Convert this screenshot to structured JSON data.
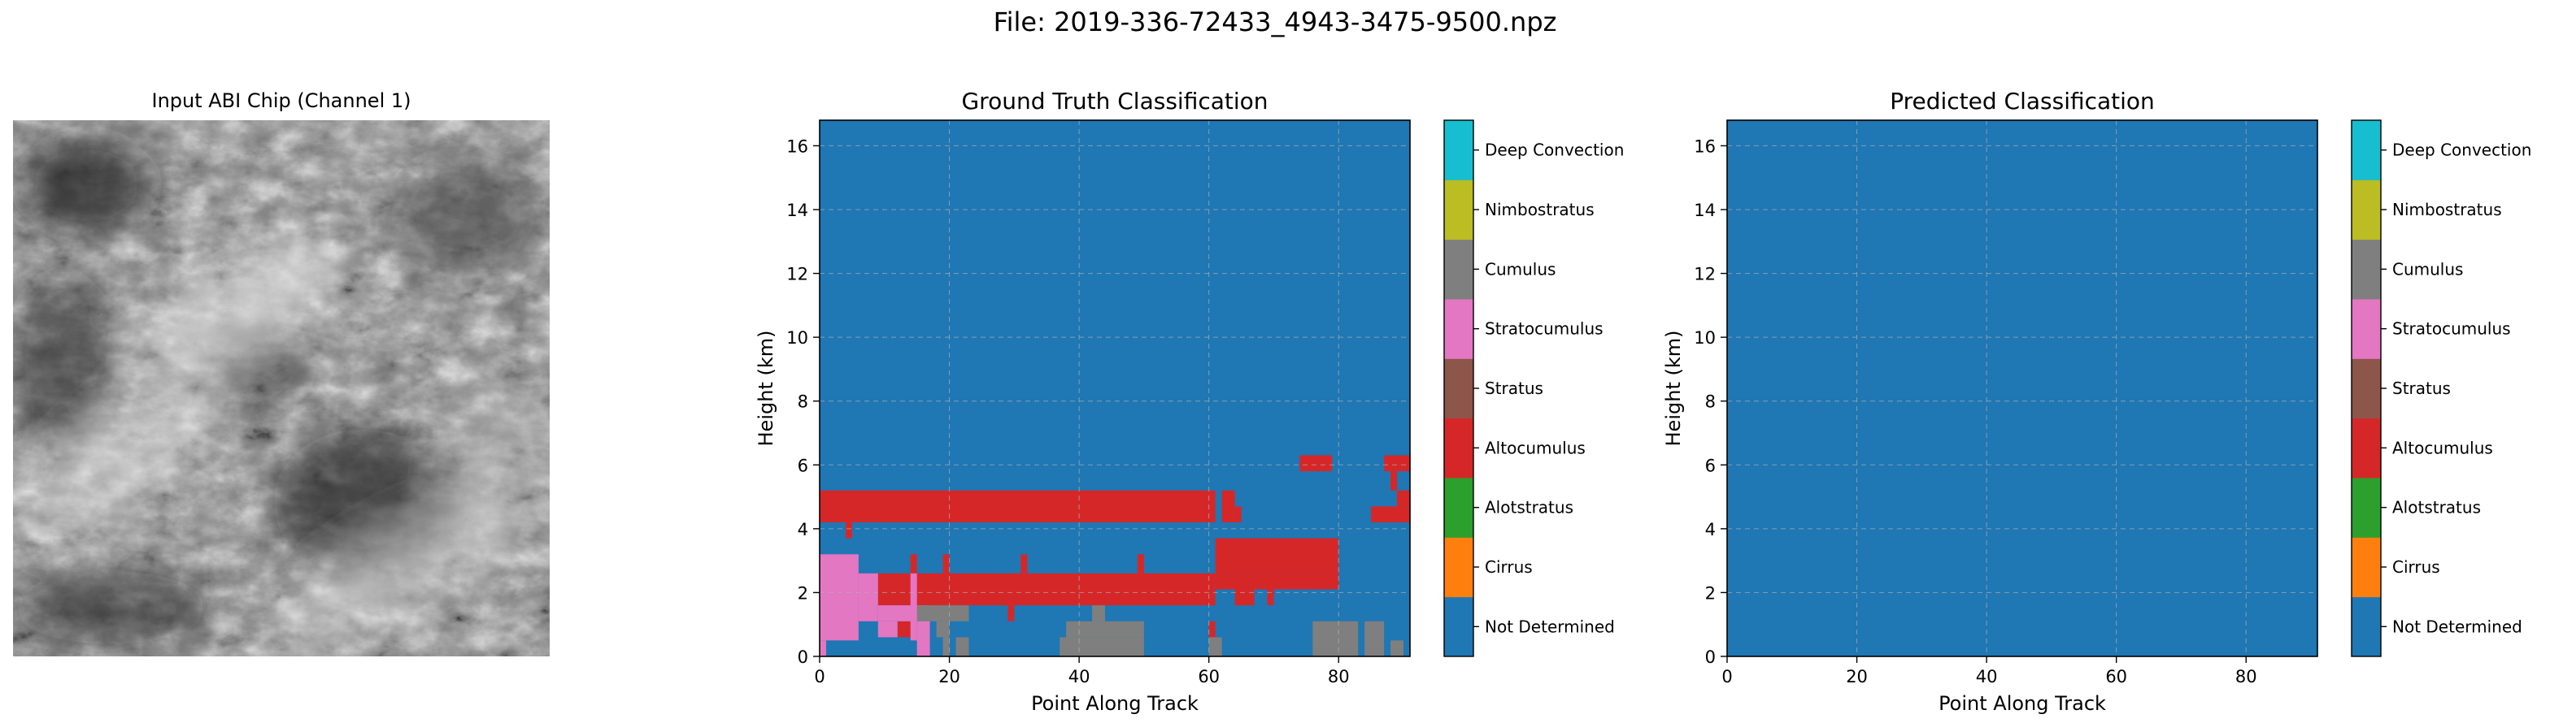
{
  "suptitle": "File: 2019-336-72433_4943-3475-9500.npz",
  "panels": {
    "input": {
      "title": "Input ABI Chip (Channel 1)"
    },
    "ground_truth": {
      "title": "Ground Truth Classification"
    },
    "predicted": {
      "title": "Predicted Classification"
    }
  },
  "colorbar": {
    "classes": [
      {
        "name": "Not Determined",
        "color": "#1f77b4"
      },
      {
        "name": "Cirrus",
        "color": "#ff7f0e"
      },
      {
        "name": "Alotstratus",
        "color": "#2ca02c"
      },
      {
        "name": "Altocumulus",
        "color": "#d62728"
      },
      {
        "name": "Stratus",
        "color": "#8c564b"
      },
      {
        "name": "Stratocumulus",
        "color": "#e377c2"
      },
      {
        "name": "Cumulus",
        "color": "#7f7f7f"
      },
      {
        "name": "Nimbostratus",
        "color": "#bcbd22"
      },
      {
        "name": "Deep Convection",
        "color": "#17becf"
      }
    ]
  },
  "chart_data": [
    {
      "type": "heatmap",
      "title": "Ground Truth Classification",
      "xlabel": "Point Along Track",
      "ylabel": "Height (km)",
      "xlim": [
        0,
        91
      ],
      "ylim": [
        0,
        16.8
      ],
      "xticks": [
        0,
        20,
        40,
        60,
        80
      ],
      "yticks": [
        0,
        2,
        4,
        6,
        8,
        10,
        12,
        14,
        16
      ],
      "grid": true,
      "background_class": "Not Determined",
      "regions": [
        {
          "class": "Altocumulus",
          "x": [
            0,
            61
          ],
          "y": [
            4.2,
            5.2
          ]
        },
        {
          "class": "Altocumulus",
          "x": [
            4,
            5
          ],
          "y": [
            3.7,
            4.2
          ]
        },
        {
          "class": "Altocumulus",
          "x": [
            62,
            64
          ],
          "y": [
            4.2,
            5.2
          ]
        },
        {
          "class": "Altocumulus",
          "x": [
            64,
            65
          ],
          "y": [
            4.2,
            4.7
          ]
        },
        {
          "class": "Altocumulus",
          "x": [
            74,
            79
          ],
          "y": [
            5.8,
            6.3
          ]
        },
        {
          "class": "Altocumulus",
          "x": [
            87,
            91
          ],
          "y": [
            5.8,
            6.3
          ]
        },
        {
          "class": "Altocumulus",
          "x": [
            88,
            89
          ],
          "y": [
            5.2,
            5.8
          ]
        },
        {
          "class": "Altocumulus",
          "x": [
            85,
            91
          ],
          "y": [
            4.2,
            4.7
          ]
        },
        {
          "class": "Altocumulus",
          "x": [
            89,
            91
          ],
          "y": [
            4.7,
            5.2
          ]
        },
        {
          "class": "Altocumulus",
          "x": [
            61,
            80
          ],
          "y": [
            2.6,
            3.7
          ]
        },
        {
          "class": "Altocumulus",
          "x": [
            61,
            80
          ],
          "y": [
            2.1,
            2.6
          ]
        },
        {
          "class": "Altocumulus",
          "x": [
            8,
            61
          ],
          "y": [
            1.6,
            2.6
          ]
        },
        {
          "class": "Altocumulus",
          "x": [
            14,
            15
          ],
          "y": [
            2.6,
            3.2
          ]
        },
        {
          "class": "Altocumulus",
          "x": [
            19,
            20
          ],
          "y": [
            2.6,
            3.2
          ]
        },
        {
          "class": "Altocumulus",
          "x": [
            31,
            32
          ],
          "y": [
            2.6,
            3.2
          ]
        },
        {
          "class": "Altocumulus",
          "x": [
            49,
            50
          ],
          "y": [
            2.6,
            3.2
          ]
        },
        {
          "class": "Altocumulus",
          "x": [
            29,
            30
          ],
          "y": [
            1.1,
            1.6
          ]
        },
        {
          "class": "Altocumulus",
          "x": [
            12,
            15
          ],
          "y": [
            0.6,
            1.1
          ]
        },
        {
          "class": "Altocumulus",
          "x": [
            64,
            67
          ],
          "y": [
            1.6,
            2.1
          ]
        },
        {
          "class": "Altocumulus",
          "x": [
            69,
            70
          ],
          "y": [
            1.6,
            2.1
          ]
        },
        {
          "class": "Altocumulus",
          "x": [
            60,
            61
          ],
          "y": [
            0.6,
            1.1
          ]
        },
        {
          "class": "Stratocumulus",
          "x": [
            0,
            6
          ],
          "y": [
            0.5,
            3.2
          ]
        },
        {
          "class": "Stratocumulus",
          "x": [
            6,
            9
          ],
          "y": [
            1.1,
            2.6
          ]
        },
        {
          "class": "Stratocumulus",
          "x": [
            9,
            17
          ],
          "y": [
            1.1,
            1.6
          ]
        },
        {
          "class": "Stratocumulus",
          "x": [
            9,
            12
          ],
          "y": [
            0.6,
            1.1
          ]
        },
        {
          "class": "Stratocumulus",
          "x": [
            14,
            15
          ],
          "y": [
            0.5,
            2.6
          ]
        },
        {
          "class": "Stratocumulus",
          "x": [
            15,
            17
          ],
          "y": [
            0.0,
            1.1
          ]
        },
        {
          "class": "Stratocumulus",
          "x": [
            0,
            1
          ],
          "y": [
            0.0,
            0.5
          ]
        },
        {
          "class": "Cumulus",
          "x": [
            15,
            23
          ],
          "y": [
            1.1,
            1.6
          ]
        },
        {
          "class": "Cumulus",
          "x": [
            18,
            20
          ],
          "y": [
            0.6,
            1.1
          ]
        },
        {
          "class": "Cumulus",
          "x": [
            19,
            20
          ],
          "y": [
            0.0,
            0.6
          ]
        },
        {
          "class": "Cumulus",
          "x": [
            21,
            23
          ],
          "y": [
            0.0,
            0.6
          ]
        },
        {
          "class": "Cumulus",
          "x": [
            38,
            50
          ],
          "y": [
            0.6,
            1.1
          ]
        },
        {
          "class": "Cumulus",
          "x": [
            37,
            50
          ],
          "y": [
            0.0,
            0.6
          ]
        },
        {
          "class": "Cumulus",
          "x": [
            42,
            44
          ],
          "y": [
            1.1,
            1.6
          ]
        },
        {
          "class": "Cumulus",
          "x": [
            60,
            62
          ],
          "y": [
            0.0,
            0.6
          ]
        },
        {
          "class": "Cumulus",
          "x": [
            76,
            83
          ],
          "y": [
            0.0,
            1.1
          ]
        },
        {
          "class": "Cumulus",
          "x": [
            84,
            87
          ],
          "y": [
            0.0,
            1.1
          ]
        },
        {
          "class": "Cumulus",
          "x": [
            88,
            90
          ],
          "y": [
            0.0,
            0.5
          ]
        }
      ]
    },
    {
      "type": "heatmap",
      "title": "Predicted Classification",
      "xlabel": "Point Along Track",
      "ylabel": "Height (km)",
      "xlim": [
        0,
        91
      ],
      "ylim": [
        0,
        16.8
      ],
      "xticks": [
        0,
        20,
        40,
        60,
        80
      ],
      "yticks": [
        0,
        2,
        4,
        6,
        8,
        10,
        12,
        14,
        16
      ],
      "grid": true,
      "background_class": "Not Determined",
      "regions": []
    }
  ]
}
